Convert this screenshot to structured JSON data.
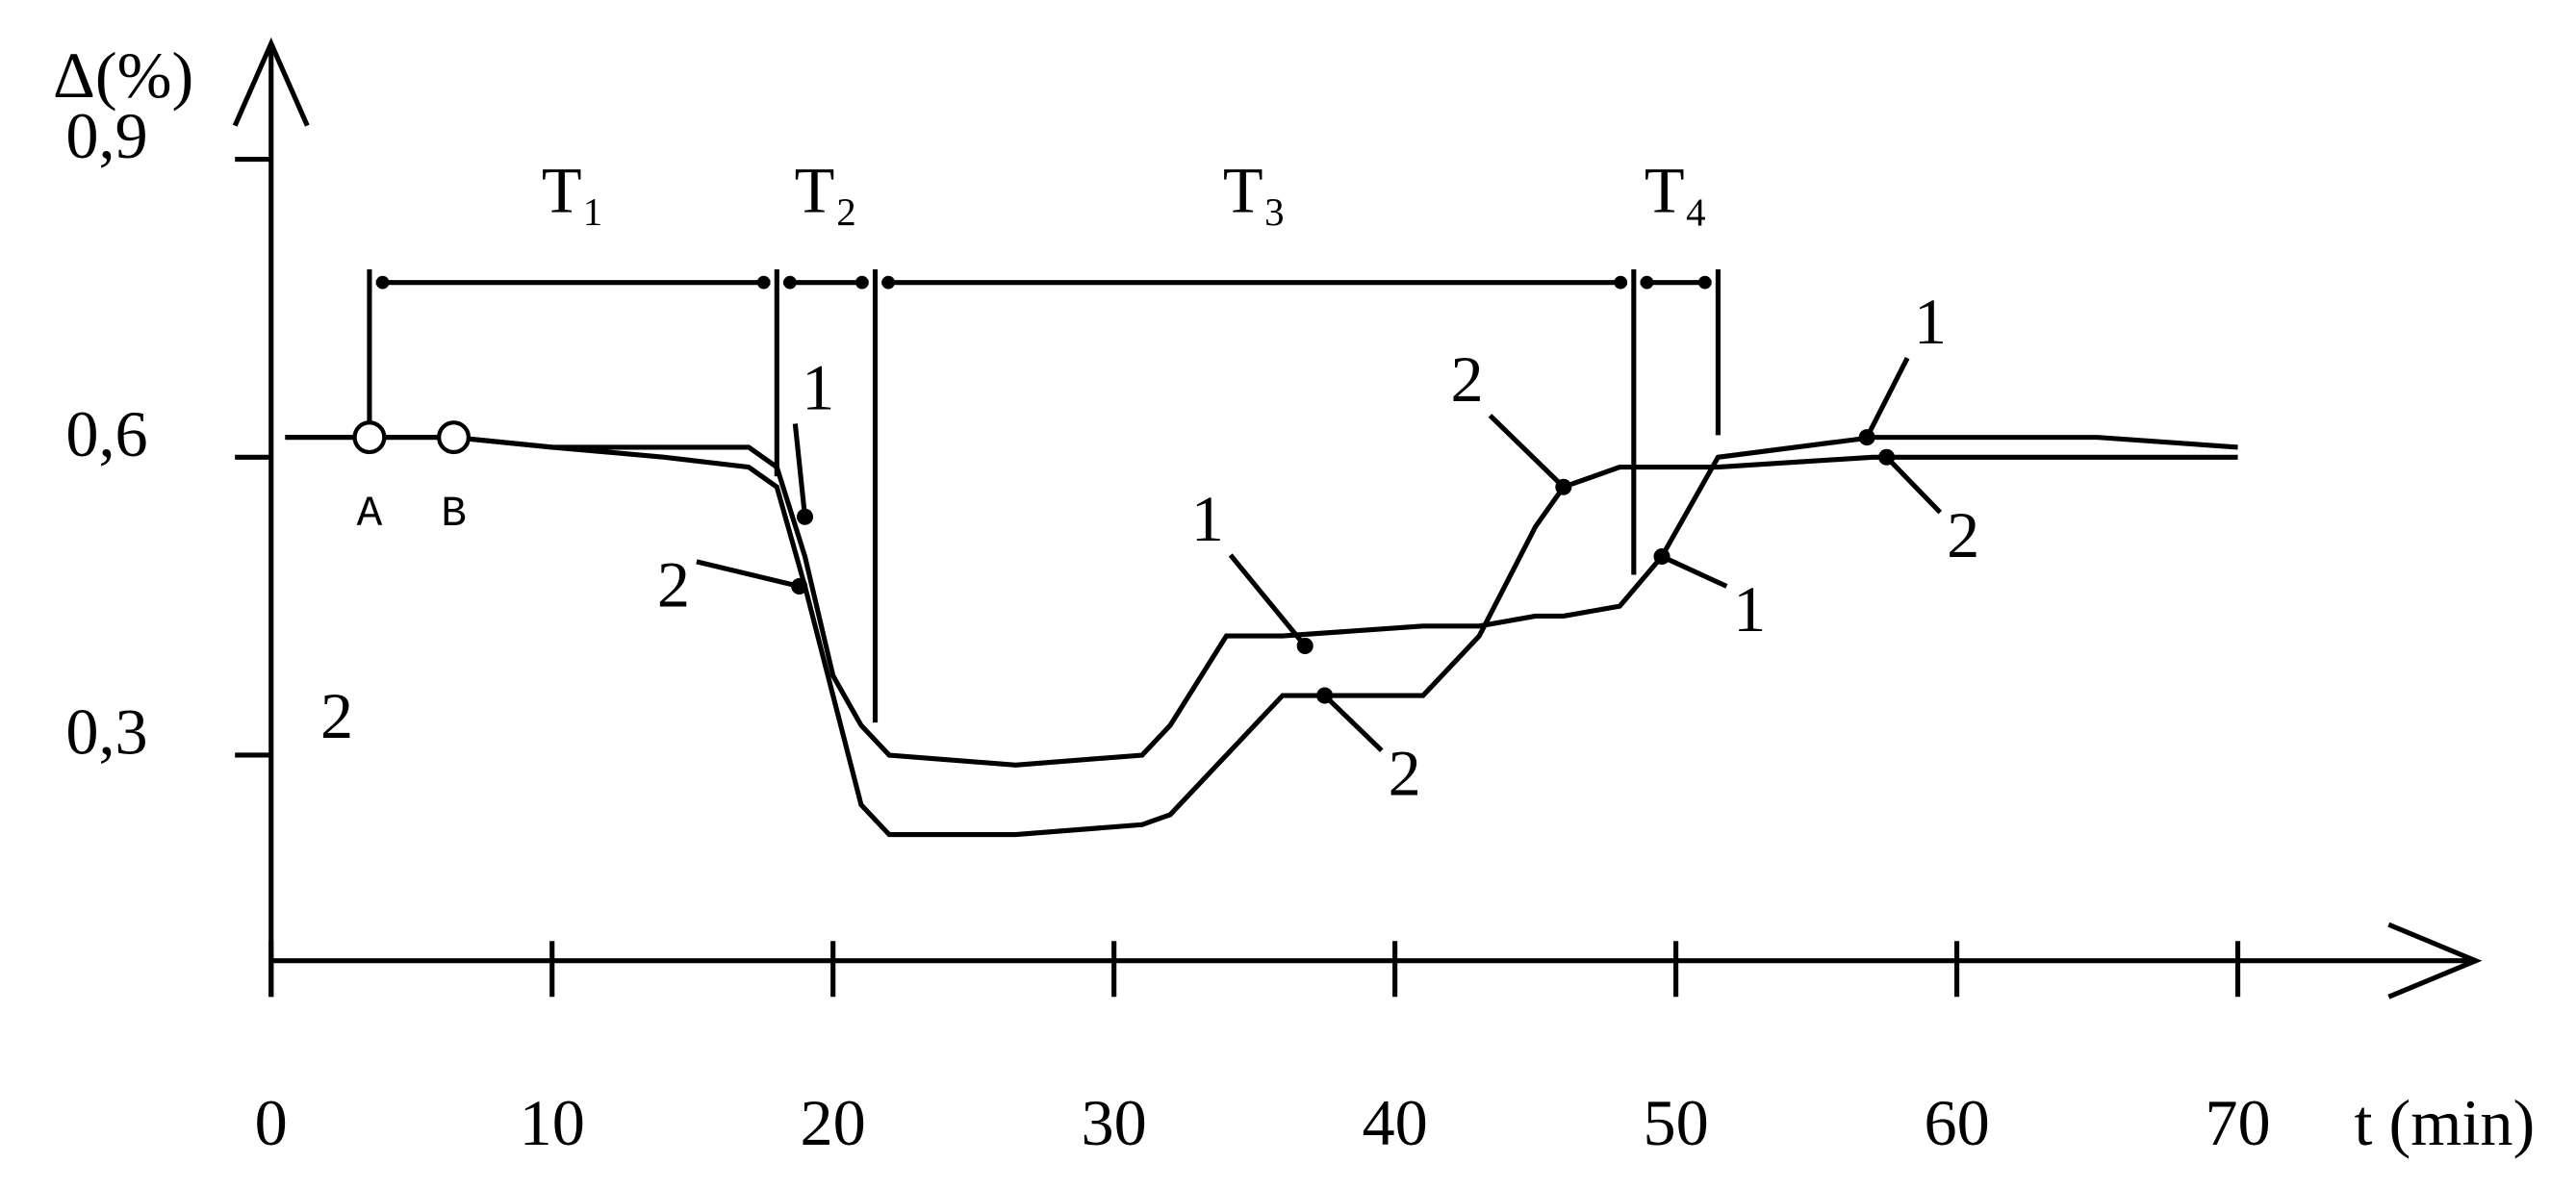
{
  "chart_data": {
    "type": "line",
    "y_label": "Δ(%)",
    "x_label": "t (min)",
    "xlim": [
      0,
      78
    ],
    "ylim": [
      0.093,
      1.0
    ],
    "xticks": [
      0,
      10,
      20,
      30,
      40,
      50,
      60,
      70
    ],
    "yticks": [
      {
        "value": 0.3,
        "label": "0,3"
      },
      {
        "value": 0.6,
        "label": "0,6"
      },
      {
        "value": 0.9,
        "label": "0,9"
      }
    ],
    "x": [
      0.5,
      3.5,
      6.5,
      10,
      14,
      17,
      18,
      19,
      20,
      21,
      22,
      26.5,
      31,
      32,
      34,
      36,
      41,
      43,
      45,
      46,
      48,
      49.5,
      51.5,
      57,
      65,
      70
    ],
    "series": [
      {
        "name": "1",
        "color": "#000000",
        "values": [
          0.62,
          0.62,
          0.62,
          0.61,
          0.61,
          0.61,
          0.59,
          0.5,
          0.38,
          0.33,
          0.3,
          0.29,
          0.3,
          0.33,
          0.42,
          0.42,
          0.43,
          0.43,
          0.44,
          0.44,
          0.45,
          0.5,
          0.6,
          0.62,
          0.62,
          0.61
        ]
      },
      {
        "name": "2",
        "color": "#000000",
        "values": [
          0.62,
          0.62,
          0.62,
          0.61,
          0.6,
          0.59,
          0.57,
          0.47,
          0.36,
          0.25,
          0.22,
          0.22,
          0.23,
          0.24,
          0.3,
          0.36,
          0.36,
          0.42,
          0.53,
          0.57,
          0.59,
          0.59,
          0.59,
          0.6,
          0.6,
          0.6
        ]
      }
    ],
    "intervals": [
      {
        "label": "T₁",
        "start": 3.5,
        "end": 18
      },
      {
        "label": "T₂",
        "start": 18,
        "end": 21.5
      },
      {
        "label": "T₃",
        "start": 21.5,
        "end": 48.5
      },
      {
        "label": "T₄",
        "start": 48.5,
        "end": 51.5
      }
    ],
    "markers": [
      {
        "label": "A",
        "x": 3.5,
        "y": 0.62
      },
      {
        "label": "B",
        "x": 6.5,
        "y": 0.62
      }
    ],
    "annotations": [
      {
        "text": "1",
        "x": 19,
        "y": 0.54
      },
      {
        "text": "2",
        "x": 18.8,
        "y": 0.47
      },
      {
        "text": "1",
        "x": 36.8,
        "y": 0.41
      },
      {
        "text": "2",
        "x": 37.5,
        "y": 0.36
      },
      {
        "text": "2",
        "x": 46,
        "y": 0.57
      },
      {
        "text": "1",
        "x": 49.5,
        "y": 0.5
      },
      {
        "text": "1",
        "x": 56.8,
        "y": 0.62
      },
      {
        "text": "2",
        "x": 57.5,
        "y": 0.6
      }
    ],
    "notes": [
      "2"
    ]
  }
}
